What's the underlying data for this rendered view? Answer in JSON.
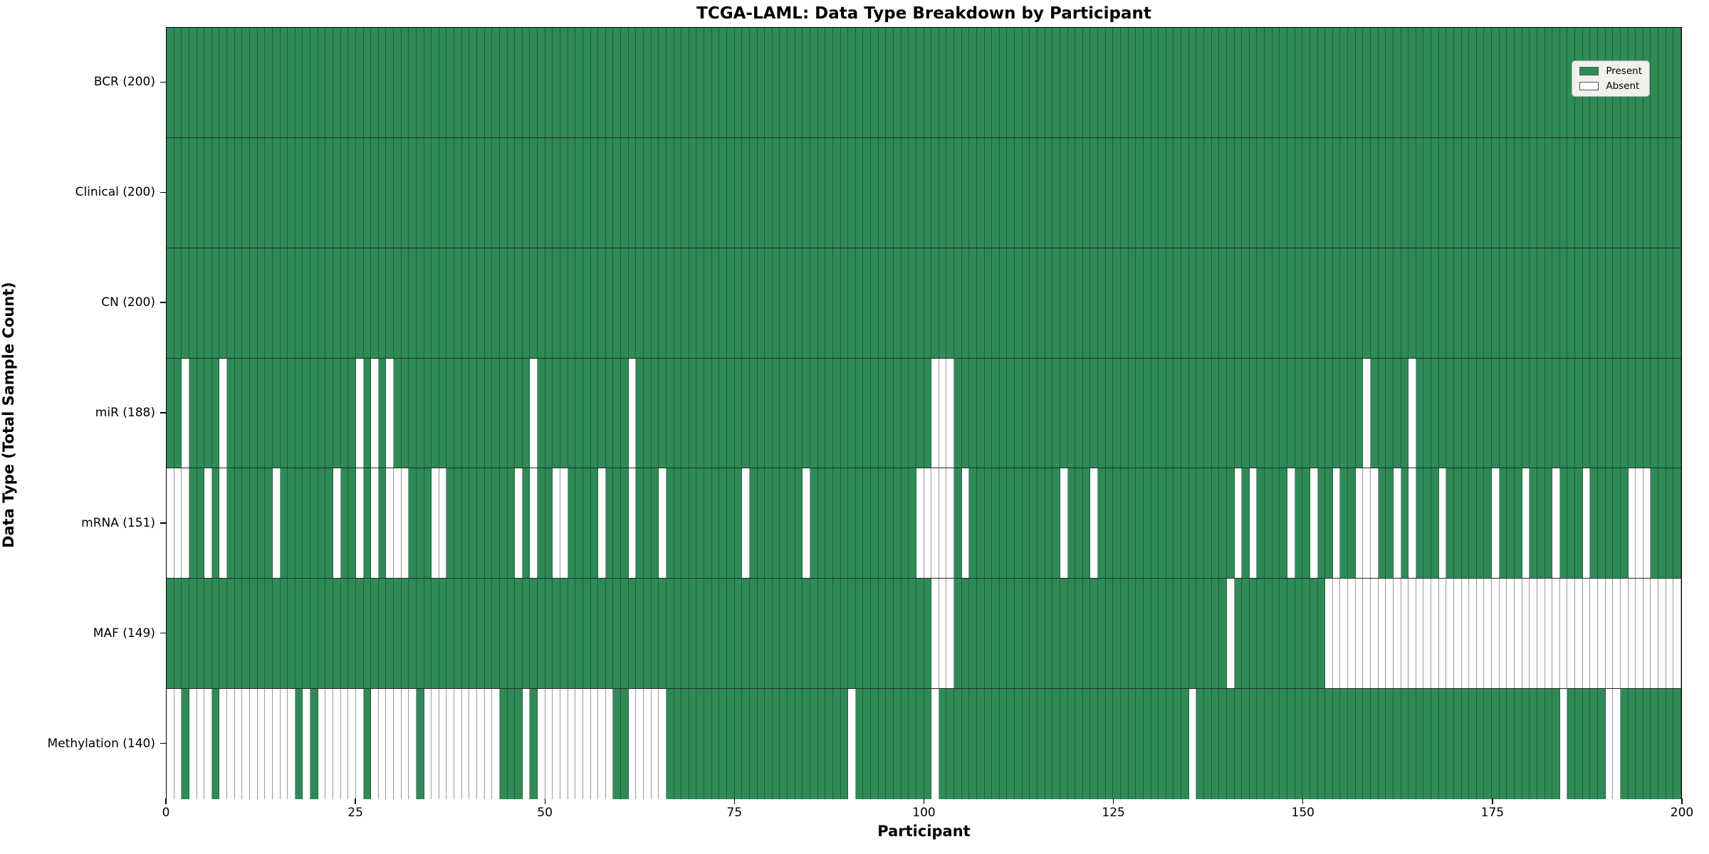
{
  "chart_data": {
    "type": "heatmap",
    "title": "TCGA-LAML: Data Type Breakdown by Participant",
    "xlabel": "Participant",
    "ylabel": "Data Type (Total Sample Count)",
    "x_min": 0,
    "x_max": 200,
    "x_ticks": [
      0,
      25,
      50,
      75,
      100,
      125,
      150,
      175,
      200
    ],
    "n_participants": 200,
    "grid": "cell-borders",
    "colors": {
      "present": "#2E8B57",
      "absent": "#FFFFFF",
      "present_cell_edge": "rgba(20,45,30,0.45)",
      "absent_cell_edge": "#999999"
    },
    "legend": {
      "position": "upper right",
      "entries": [
        {
          "label": "Present",
          "color": "#2E8B57"
        },
        {
          "label": "Absent",
          "color": "#FFFFFF"
        }
      ]
    },
    "rows": [
      {
        "label": "BCR (200)",
        "name": "BCR",
        "present_total": 200,
        "absent_participants": []
      },
      {
        "label": "Clinical (200)",
        "name": "Clinical",
        "present_total": 200,
        "absent_participants": []
      },
      {
        "label": "CN (200)",
        "name": "CN",
        "present_total": 200,
        "absent_participants": []
      },
      {
        "label": "miR (188)",
        "name": "miR",
        "present_total": 188,
        "absent_participants": [
          2,
          7,
          25,
          27,
          29,
          48,
          61,
          101,
          102,
          103,
          158,
          164
        ]
      },
      {
        "label": "mRNA (151)",
        "name": "mRNA",
        "present_total": 151,
        "absent_participants": [
          0,
          1,
          2,
          5,
          7,
          14,
          22,
          25,
          27,
          29,
          30,
          31,
          35,
          36,
          46,
          48,
          51,
          52,
          57,
          61,
          65,
          76,
          84,
          99,
          100,
          101,
          102,
          103,
          105,
          118,
          122,
          141,
          143,
          148,
          151,
          154,
          157,
          158,
          159,
          162,
          164,
          168,
          175,
          179,
          183,
          187,
          193,
          194,
          195
        ]
      },
      {
        "label": "MAF (149)",
        "name": "MAF",
        "present_total": 149,
        "absent_participants": [
          101,
          102,
          103,
          140,
          153,
          154,
          155,
          156,
          157,
          158,
          159,
          160,
          161,
          162,
          163,
          164,
          165,
          166,
          167,
          168,
          169,
          170,
          171,
          172,
          173,
          174,
          175,
          176,
          177,
          178,
          179,
          180,
          181,
          182,
          183,
          184,
          185,
          186,
          187,
          188,
          189,
          190,
          191,
          192,
          193,
          194,
          195,
          196,
          197,
          198,
          199
        ]
      },
      {
        "label": "Methylation (140)",
        "name": "Methylation",
        "present_total": 140,
        "absent_participants": [
          0,
          1,
          3,
          4,
          5,
          7,
          8,
          9,
          10,
          11,
          12,
          13,
          14,
          15,
          16,
          18,
          20,
          21,
          22,
          23,
          24,
          25,
          27,
          28,
          29,
          30,
          31,
          32,
          34,
          35,
          36,
          37,
          38,
          39,
          40,
          41,
          42,
          43,
          47,
          49,
          50,
          51,
          52,
          53,
          54,
          55,
          56,
          57,
          58,
          61,
          62,
          63,
          64,
          65,
          90,
          101,
          135,
          184,
          190,
          191
        ]
      }
    ]
  }
}
